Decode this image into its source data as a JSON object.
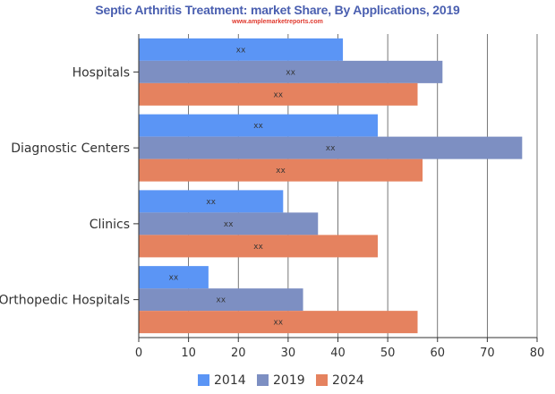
{
  "chart_data": {
    "type": "bar",
    "orientation": "horizontal",
    "title": "Septic Arthritis Treatment: market Share, By Applications, 2019",
    "subtitle": "www.amplemarketreports.com",
    "categories": [
      "Hospitals",
      "Diagnostic Centers",
      "Clinics",
      "Orthopedic Hospitals"
    ],
    "series": [
      {
        "name": "2014",
        "color": "#5b95f5",
        "values": [
          41,
          48,
          29,
          14
        ],
        "labels": [
          "xx",
          "xx",
          "xx",
          "xx"
        ]
      },
      {
        "name": "2019",
        "color": "#7d8fc2",
        "values": [
          61,
          77,
          36,
          33
        ],
        "labels": [
          "xx",
          "xx",
          "xx",
          "xx"
        ]
      },
      {
        "name": "2024",
        "color": "#e5825f",
        "values": [
          56,
          57,
          48,
          56
        ],
        "labels": [
          "xx",
          "xx",
          "xx",
          "xx"
        ]
      }
    ],
    "xlim": [
      0,
      80
    ],
    "xticks": [
      0,
      10,
      20,
      30,
      40,
      50,
      60,
      70,
      80
    ],
    "grid": true,
    "legend": "bottom-center"
  }
}
